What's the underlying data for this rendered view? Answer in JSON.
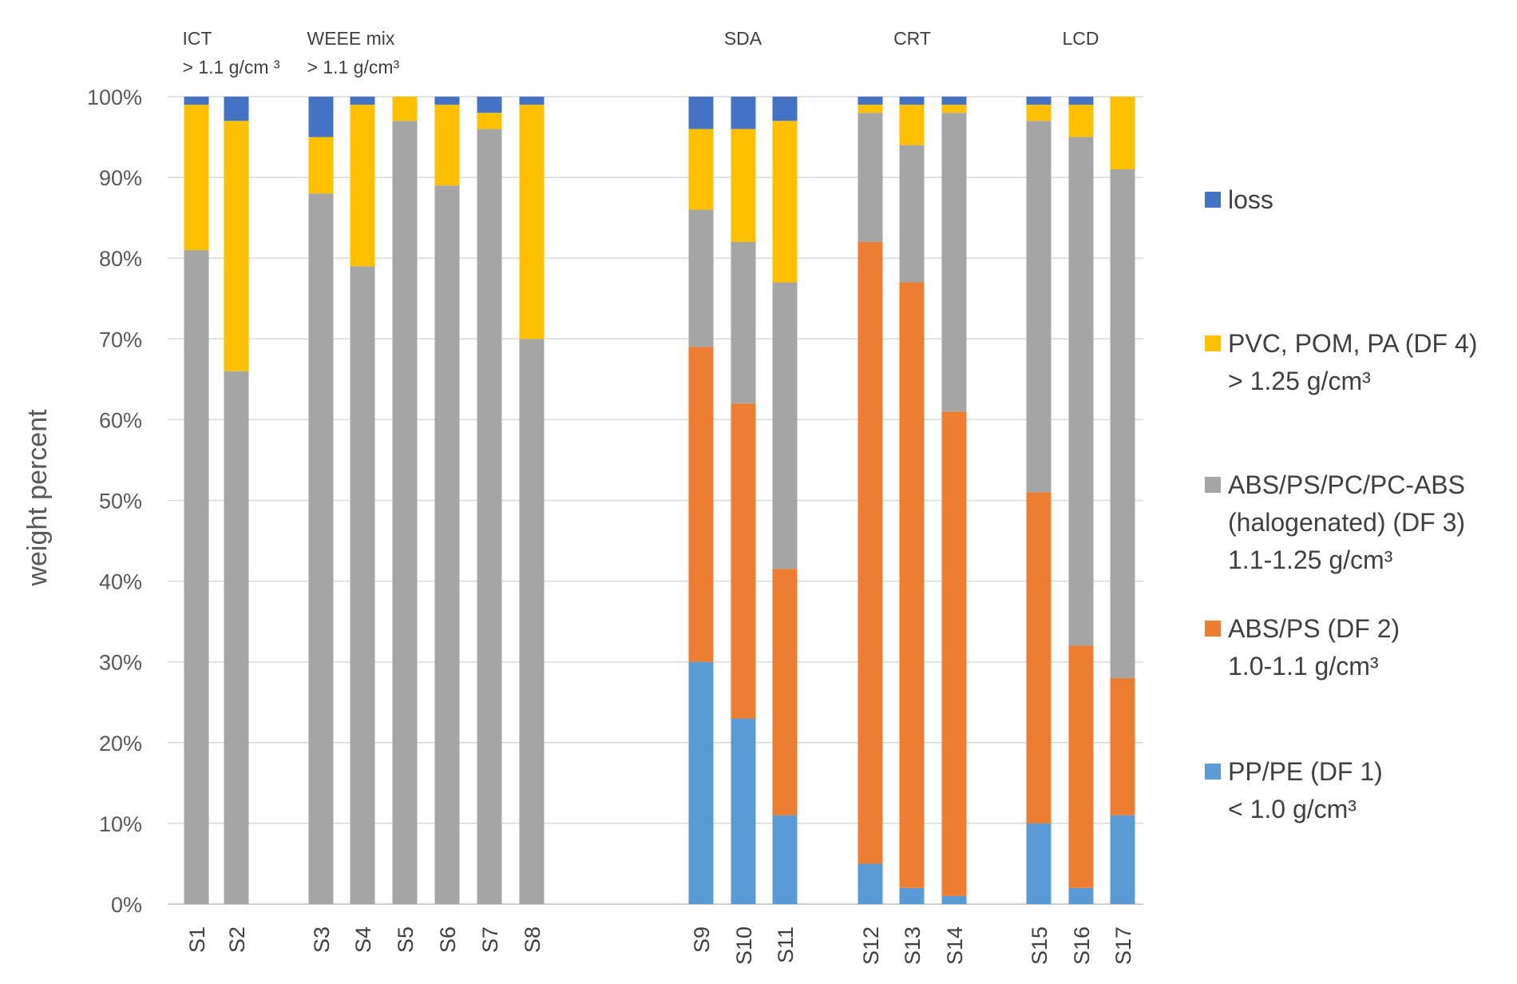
{
  "chart_data": {
    "type": "bar",
    "stacked": true,
    "title": "",
    "xlabel": "",
    "ylabel": "weight percent",
    "ylim": [
      0,
      100
    ],
    "y_ticks": [
      "0%",
      "10%",
      "20%",
      "30%",
      "40%",
      "50%",
      "60%",
      "70%",
      "80%",
      "90%",
      "100%"
    ],
    "grid": true,
    "legend_position": "right",
    "categories": [
      "S1",
      "S2",
      "S3",
      "S4",
      "S5",
      "S6",
      "S7",
      "S8",
      "S9",
      "S10",
      "S11",
      "S12",
      "S13",
      "S14",
      "S15",
      "S16",
      "S17"
    ],
    "groups": [
      {
        "lines": [
          "ICT",
          "> 1.1 g/cm ³"
        ],
        "members": [
          "S1",
          "S2"
        ]
      },
      {
        "lines": [
          "WEEE mix",
          "> 1.1 g/cm³"
        ],
        "members": [
          "S3",
          "S4",
          "S5",
          "S6",
          "S7",
          "S8"
        ]
      },
      {
        "lines": [
          "SDA"
        ],
        "members": [
          "S9",
          "S10",
          "S11"
        ]
      },
      {
        "lines": [
          "CRT"
        ],
        "members": [
          "S12",
          "S13",
          "S14"
        ]
      },
      {
        "lines": [
          "LCD"
        ],
        "members": [
          "S15",
          "S16",
          "S17"
        ]
      }
    ],
    "series": [
      {
        "name": "PP/PE (DF 1)",
        "legend_lines": [
          "PP/PE (DF 1)",
          "< 1.0 g/cm³"
        ],
        "color": "#5B9BD5",
        "values": [
          0,
          0,
          0,
          0,
          0,
          0,
          0,
          0,
          30,
          23,
          11,
          5,
          2,
          1,
          10,
          2,
          11
        ]
      },
      {
        "name": "ABS/PS (DF 2)",
        "legend_lines": [
          "ABS/PS (DF 2)",
          "1.0-1.1 g/cm³"
        ],
        "color": "#ED7D31",
        "values": [
          0,
          0,
          0,
          0,
          0,
          0,
          0,
          0,
          39,
          39,
          30.5,
          77,
          75,
          60,
          41,
          30,
          17
        ]
      },
      {
        "name": "ABS/PS/PC/PC-ABS (halogenated) (DF 3)",
        "legend_lines": [
          "ABS/PS/PC/PC-ABS",
          "(halogenated) (DF 3)",
          "1.1-1.25 g/cm³"
        ],
        "color": "#A5A5A5",
        "values": [
          81,
          66,
          88,
          79,
          97,
          89,
          96,
          70,
          17,
          20,
          35.5,
          16,
          17,
          37,
          46,
          63,
          63
        ]
      },
      {
        "name": "PVC, POM, PA (DF 4)",
        "legend_lines": [
          "PVC, POM, PA (DF 4)",
          "> 1.25 g/cm³"
        ],
        "color": "#FFC000",
        "values": [
          18,
          31,
          7,
          20,
          3,
          10,
          2,
          29,
          10,
          14,
          20,
          1,
          5,
          1,
          2,
          4,
          9
        ]
      },
      {
        "name": "loss",
        "legend_lines": [
          "loss"
        ],
        "color": "#4472C4",
        "values": [
          1,
          3,
          5,
          1,
          0,
          1,
          2,
          1,
          4,
          4,
          3,
          1,
          1,
          1,
          1,
          1,
          0
        ]
      }
    ],
    "legend_order": [
      "loss",
      "PVC, POM, PA (DF 4)",
      "ABS/PS/PC/PC-ABS (halogenated) (DF 3)",
      "ABS/PS (DF 2)",
      "PP/PE (DF 1)"
    ]
  }
}
